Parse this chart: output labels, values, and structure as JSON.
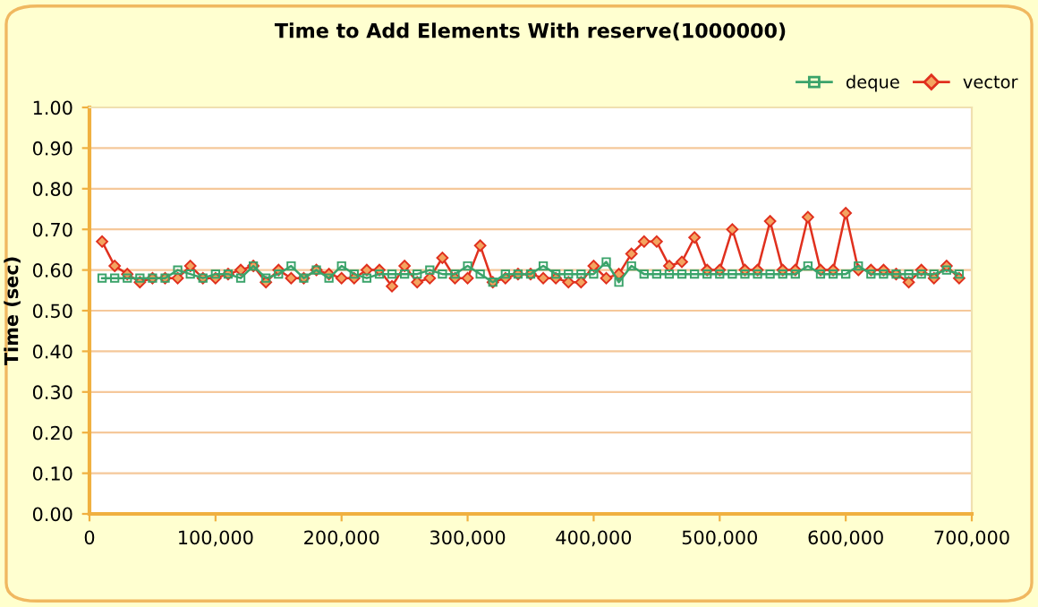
{
  "chart_data": {
    "type": "line",
    "title": "Time to Add Elements With reserve(1000000)",
    "ylabel": "Time (sec)",
    "x": [
      10000,
      20000,
      30000,
      40000,
      50000,
      60000,
      70000,
      80000,
      90000,
      100000,
      110000,
      120000,
      130000,
      140000,
      150000,
      160000,
      170000,
      180000,
      190000,
      200000,
      210000,
      220000,
      230000,
      240000,
      250000,
      260000,
      270000,
      280000,
      290000,
      300000,
      310000,
      320000,
      330000,
      340000,
      350000,
      360000,
      370000,
      380000,
      390000,
      400000,
      410000,
      420000,
      430000,
      440000,
      450000,
      460000,
      470000,
      480000,
      490000,
      500000,
      510000,
      520000,
      530000,
      540000,
      550000,
      560000,
      570000,
      580000,
      590000,
      600000,
      610000,
      620000,
      630000,
      640000,
      650000,
      660000,
      670000,
      680000,
      690000
    ],
    "series": [
      {
        "name": "deque",
        "color": "#3aa36a",
        "marker": "square",
        "values": [
          0.58,
          0.58,
          0.58,
          0.58,
          0.58,
          0.58,
          0.6,
          0.59,
          0.58,
          0.59,
          0.59,
          0.58,
          0.61,
          0.58,
          0.59,
          0.61,
          0.58,
          0.6,
          0.58,
          0.61,
          0.59,
          0.58,
          0.59,
          0.59,
          0.59,
          0.59,
          0.6,
          0.59,
          0.59,
          0.61,
          0.59,
          0.57,
          0.59,
          0.59,
          0.59,
          0.61,
          0.59,
          0.59,
          0.59,
          0.59,
          0.62,
          0.57,
          0.61,
          0.59,
          0.59,
          0.59,
          0.59,
          0.59,
          0.59,
          0.59,
          0.59,
          0.59,
          0.59,
          0.59,
          0.59,
          0.59,
          0.61,
          0.59,
          0.59,
          0.59,
          0.61,
          0.59,
          0.59,
          0.59,
          0.59,
          0.59,
          0.59,
          0.6,
          0.59
        ]
      },
      {
        "name": "vector",
        "color": "#e0301e",
        "marker": "diamond",
        "values": [
          0.67,
          0.61,
          0.59,
          0.57,
          0.58,
          0.58,
          0.58,
          0.61,
          0.58,
          0.58,
          0.59,
          0.6,
          0.61,
          0.57,
          0.6,
          0.58,
          0.58,
          0.6,
          0.59,
          0.58,
          0.58,
          0.6,
          0.6,
          0.56,
          0.61,
          0.57,
          0.58,
          0.63,
          0.58,
          0.58,
          0.66,
          0.57,
          0.58,
          0.59,
          0.59,
          0.58,
          0.58,
          0.57,
          0.57,
          0.61,
          0.58,
          0.59,
          0.64,
          0.67,
          0.67,
          0.61,
          0.62,
          0.68,
          0.6,
          0.6,
          0.7,
          0.6,
          0.6,
          0.72,
          0.6,
          0.6,
          0.73,
          0.6,
          0.6,
          0.74,
          0.6,
          0.6,
          0.6,
          0.59,
          0.57,
          0.6,
          0.58,
          0.61,
          0.58
        ]
      }
    ],
    "xlim": [
      0,
      700000
    ],
    "xticks": [
      {
        "value": 0,
        "label": "0"
      },
      {
        "value": 100000,
        "label": "100,000"
      },
      {
        "value": 200000,
        "label": "200,000"
      },
      {
        "value": 300000,
        "label": "300,000"
      },
      {
        "value": 400000,
        "label": "400,000"
      },
      {
        "value": 500000,
        "label": "500,000"
      },
      {
        "value": 600000,
        "label": "600,000"
      },
      {
        "value": 700000,
        "label": "700,000"
      }
    ],
    "ylim": [
      0,
      1
    ],
    "yticks": [
      {
        "value": 0,
        "label": "0.00"
      },
      {
        "value": 0.1,
        "label": "0.10"
      },
      {
        "value": 0.2,
        "label": "0.20"
      },
      {
        "value": 0.3,
        "label": "0.30"
      },
      {
        "value": 0.4,
        "label": "0.40"
      },
      {
        "value": 0.5,
        "label": "0.50"
      },
      {
        "value": 0.6,
        "label": "0.60"
      },
      {
        "value": 0.7,
        "label": "0.70"
      },
      {
        "value": 0.8,
        "label": "0.80"
      },
      {
        "value": 0.9,
        "label": "0.90"
      },
      {
        "value": 1.0,
        "label": "1.00"
      }
    ],
    "grid": "y",
    "legend": "top right",
    "line_style": "solid"
  }
}
